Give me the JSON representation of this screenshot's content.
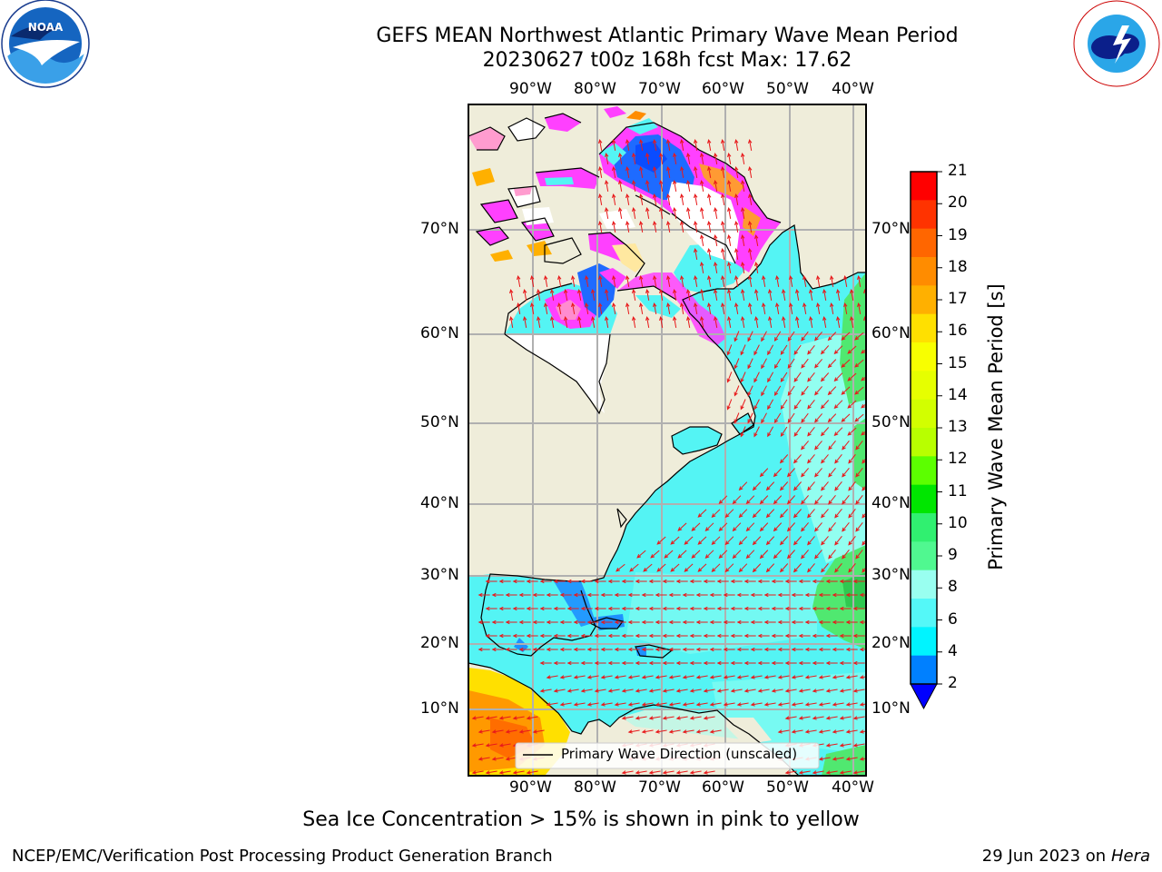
{
  "header": {
    "title_line1": "GEFS MEAN Northwest Atlantic Primary Wave Mean Period",
    "title_line2": "20230627 t00z 168h fcst   Max: 17.62"
  },
  "logos": {
    "left": "noaa-logo",
    "right": "national-weather-service-logo"
  },
  "map": {
    "lon_labels": [
      "90°W",
      "80°W",
      "70°W",
      "60°W",
      "50°W",
      "40°W"
    ],
    "lat_labels": [
      "70°N",
      "60°N",
      "50°N",
      "40°N",
      "30°N",
      "20°N",
      "10°N"
    ],
    "legend_label": "Primary Wave Direction (unscaled)",
    "colors": {
      "land": "#efedda",
      "ocean": "#54f4f4",
      "arrows": "#e8191b",
      "grid": "#b0b0b0"
    }
  },
  "colorbar": {
    "label": "Primary Wave Mean Period [s]",
    "ticks": [
      "21",
      "20",
      "19",
      "18",
      "17",
      "16",
      "15",
      "14",
      "13",
      "12",
      "11",
      "10",
      "9",
      "8",
      "6",
      "4",
      "2"
    ],
    "colors": [
      "#ff0000",
      "#ff3300",
      "#ff6600",
      "#ff8c00",
      "#ffb000",
      "#ffe000",
      "#f8ff00",
      "#e6ff00",
      "#d2ff00",
      "#b8ff00",
      "#5cff00",
      "#00e600",
      "#30f070",
      "#50f890",
      "#99fff0",
      "#54f8f8",
      "#00f4ff",
      "#0080ff"
    ],
    "under_color": "#0000ff"
  },
  "caption": "Sea Ice Concentration > 15% is shown in pink to yellow",
  "footer": {
    "left": "NCEP/EMC/Verification Post Processing Product Generation Branch",
    "right_date": "29 Jun 2023 on",
    "right_host": "Hera"
  }
}
